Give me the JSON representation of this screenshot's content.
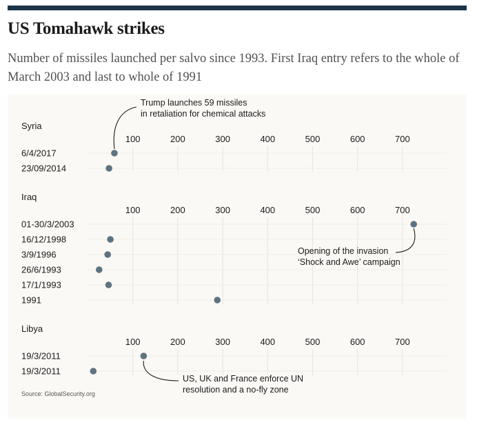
{
  "title": "US Tomahawk strikes",
  "subtitle": "Number of missiles launched per salvo since 1993. First Iraq entry refers to the whole of March 2003 and last to whole of 1991",
  "source": "Source: GlobalSecurity.org",
  "colors": {
    "dot": "#5d7382",
    "grid": "#e6e4de",
    "text": "#1a1a1a",
    "panel": "#faf9f5",
    "topbar": "#1d3447"
  },
  "chart_data": [
    {
      "type": "scatter",
      "title": "Syria",
      "xlim": [
        0,
        780
      ],
      "xticks": [
        100,
        200,
        300,
        400,
        500,
        600,
        700
      ],
      "categories": [
        "6/4/2017",
        "23/09/2014"
      ],
      "values": [
        59,
        47
      ],
      "annotations": [
        {
          "text": [
            "Trump launches 59 missiles",
            "in retaliation for chemical attacks"
          ],
          "point": 0
        }
      ]
    },
    {
      "type": "scatter",
      "title": "Iraq",
      "xlim": [
        0,
        780
      ],
      "xticks": [
        100,
        200,
        300,
        400,
        500,
        600,
        700
      ],
      "categories": [
        "01-30/3/2003",
        "16/12/1998",
        "3/9/1996",
        "26/6/1993",
        "17/1/1993",
        "1991"
      ],
      "values": [
        725,
        50,
        44,
        25,
        46,
        288
      ],
      "annotations": [
        {
          "text": [
            "Opening of the invasion",
            "‘Shock and Awe’ campaign"
          ],
          "point": 0
        }
      ]
    },
    {
      "type": "scatter",
      "title": "Libya",
      "xlim": [
        0,
        780
      ],
      "xticks": [
        100,
        200,
        300,
        400,
        500,
        600,
        700
      ],
      "categories": [
        "19/3/2011",
        "19/3/2011"
      ],
      "values": [
        124,
        12
      ],
      "annotations": [
        {
          "text": [
            "US, UK and France enforce UN",
            "resolution and a no-fly zone"
          ],
          "point": 0
        }
      ]
    }
  ]
}
